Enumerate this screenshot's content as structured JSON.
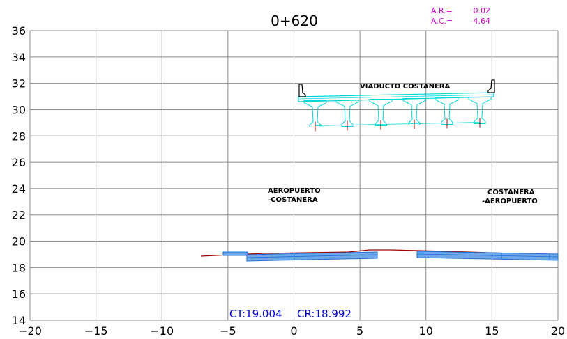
{
  "section": {
    "station": "0+620",
    "ar_label": "A.R.=",
    "ar_value": "0.02",
    "ac_label": "A.C.=",
    "ac_value": "4.64"
  },
  "axes": {
    "x_ticks": [
      -20,
      -15,
      -10,
      -5,
      0,
      5,
      10,
      15,
      20
    ],
    "y_ticks": [
      14,
      16,
      18,
      20,
      22,
      24,
      26,
      28,
      30,
      32,
      34,
      36
    ],
    "x_range": [
      -20,
      20
    ],
    "y_range": [
      14,
      36
    ],
    "grid": true
  },
  "labels": {
    "viaduct": "VIADUCTO COSTANERA",
    "left_road_line1": "AEROPUERTO",
    "left_road_line2": "-COSTANERA",
    "right_road_line1": "COSTANERA",
    "right_road_line2": "-AEROPUERTO",
    "ct": "CT:19.004",
    "cr": "CR:18.992"
  },
  "colors": {
    "grid": "#8c8c8c",
    "viaduct": "#00d8d8",
    "pavement": "#1e6fd0",
    "pavement_fill": "#6ea8ea",
    "terrain": "#a00000",
    "annotation": "#d000d0",
    "cota_text": "#0000cc"
  }
}
